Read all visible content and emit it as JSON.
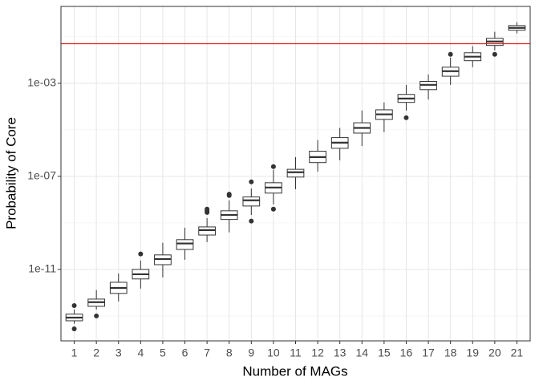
{
  "chart_data": {
    "type": "boxplot",
    "xlabel": "Number of MAGs",
    "ylabel": "Probability of Core",
    "categories": [
      "1",
      "2",
      "3",
      "4",
      "5",
      "6",
      "7",
      "8",
      "9",
      "10",
      "11",
      "12",
      "13",
      "14",
      "15",
      "16",
      "17",
      "18",
      "19",
      "20",
      "21"
    ],
    "boxes": [
      {
        "low": 4.6e-14,
        "q1": 6.2e-14,
        "median": 8.5e-14,
        "q3": 1.2e-13,
        "high": 1.9e-13,
        "outliers": [
          2.8e-13,
          2.8e-14
        ]
      },
      {
        "low": 1.9e-13,
        "q1": 2.6e-13,
        "median": 3.9e-13,
        "q3": 5.3e-13,
        "high": 1.3e-12,
        "outliers": [
          1e-13
        ]
      },
      {
        "low": 4.2e-13,
        "q1": 9.3e-13,
        "median": 1.6e-12,
        "q3": 2.8e-12,
        "high": 6.7e-12,
        "outliers": []
      },
      {
        "low": 1.5e-12,
        "q1": 3.9e-12,
        "median": 6.2e-12,
        "q3": 1e-11,
        "high": 2.4e-11,
        "outliers": [
          4.6e-11
        ]
      },
      {
        "low": 4.5e-12,
        "q1": 1.6e-11,
        "median": 2.8e-11,
        "q3": 4.2e-11,
        "high": 1.4e-10,
        "outliers": []
      },
      {
        "low": 2.6e-11,
        "q1": 7.2e-11,
        "median": 1.3e-10,
        "q3": 1.9e-10,
        "high": 6.2e-10,
        "outliers": []
      },
      {
        "low": 1.5e-10,
        "q1": 3e-10,
        "median": 4.9e-10,
        "q3": 6.7e-10,
        "high": 1.6e-09,
        "outliers": [
          3.9e-09,
          3.3e-09,
          2.8e-09
        ]
      },
      {
        "low": 3.9e-10,
        "q1": 1.4e-09,
        "median": 2.2e-09,
        "q3": 3.3e-09,
        "high": 9.3e-09,
        "outliers": [
          1.7e-08,
          1.5e-08
        ]
      },
      {
        "low": 2.2e-09,
        "q1": 5.3e-09,
        "median": 9.3e-09,
        "q3": 1.3e-08,
        "high": 3e-08,
        "outliers": [
          5.8e-08,
          1.2e-09
        ]
      },
      {
        "low": 6.2e-09,
        "q1": 1.9e-08,
        "median": 3.3e-08,
        "q3": 5.3e-08,
        "high": 1.9e-07,
        "outliers": [
          2.6e-07,
          3.9e-09
        ]
      },
      {
        "low": 2.8e-08,
        "q1": 9.3e-08,
        "median": 1.5e-07,
        "q3": 2e-07,
        "high": 6.7e-07,
        "outliers": []
      },
      {
        "low": 1.6e-07,
        "q1": 3.9e-07,
        "median": 6.7e-07,
        "q3": 1.2e-06,
        "high": 3.6e-06,
        "outliers": []
      },
      {
        "low": 4.9e-07,
        "q1": 1.6e-06,
        "median": 2.8e-06,
        "q3": 4.6e-06,
        "high": 1.2e-05,
        "outliers": []
      },
      {
        "low": 2e-06,
        "q1": 7.2e-06,
        "median": 1.2e-05,
        "q3": 2e-05,
        "high": 6.7e-05,
        "outliers": []
      },
      {
        "low": 7.9e-06,
        "q1": 2.8e-05,
        "median": 4.6e-05,
        "q3": 7.2e-05,
        "high": 0.00015,
        "outliers": []
      },
      {
        "low": 6.7e-05,
        "q1": 0.00015,
        "median": 0.00022,
        "q3": 0.00033,
        "high": 0.00085,
        "outliers": [
          3.3e-05
        ]
      },
      {
        "low": 0.0002,
        "q1": 0.00053,
        "median": 0.00085,
        "q3": 0.0012,
        "high": 0.0024,
        "outliers": []
      },
      {
        "low": 0.00085,
        "q1": 0.002,
        "median": 0.0033,
        "q3": 0.0049,
        "high": 0.0126,
        "outliers": [
          0.0174
        ]
      },
      {
        "low": 0.0049,
        "q1": 0.0093,
        "median": 0.0138,
        "q3": 0.0204,
        "high": 0.039,
        "outliers": []
      },
      {
        "low": 0.026,
        "q1": 0.042,
        "median": 0.062,
        "q3": 0.085,
        "high": 0.162,
        "outliers": [
          0.0174
        ]
      },
      {
        "low": 0.138,
        "q1": 0.19,
        "median": 0.24,
        "q3": 0.3,
        "high": 0.42,
        "outliers": []
      }
    ],
    "log_y": true,
    "ylim": [
      8.5e-15,
      2.0
    ],
    "yticks": [
      {
        "value": 1e-11,
        "label": "1e-11"
      },
      {
        "value": 1e-07,
        "label": "1e-07"
      },
      {
        "value": 0.001,
        "label": "1e-03"
      }
    ],
    "y_minor_breaks": [
      1e-13,
      1e-09,
      1e-05,
      0.1
    ],
    "grid": true,
    "hline": {
      "value": 0.05,
      "color": "#e41a1c"
    },
    "box_fill": "#ffffff",
    "box_color": "#333333"
  }
}
